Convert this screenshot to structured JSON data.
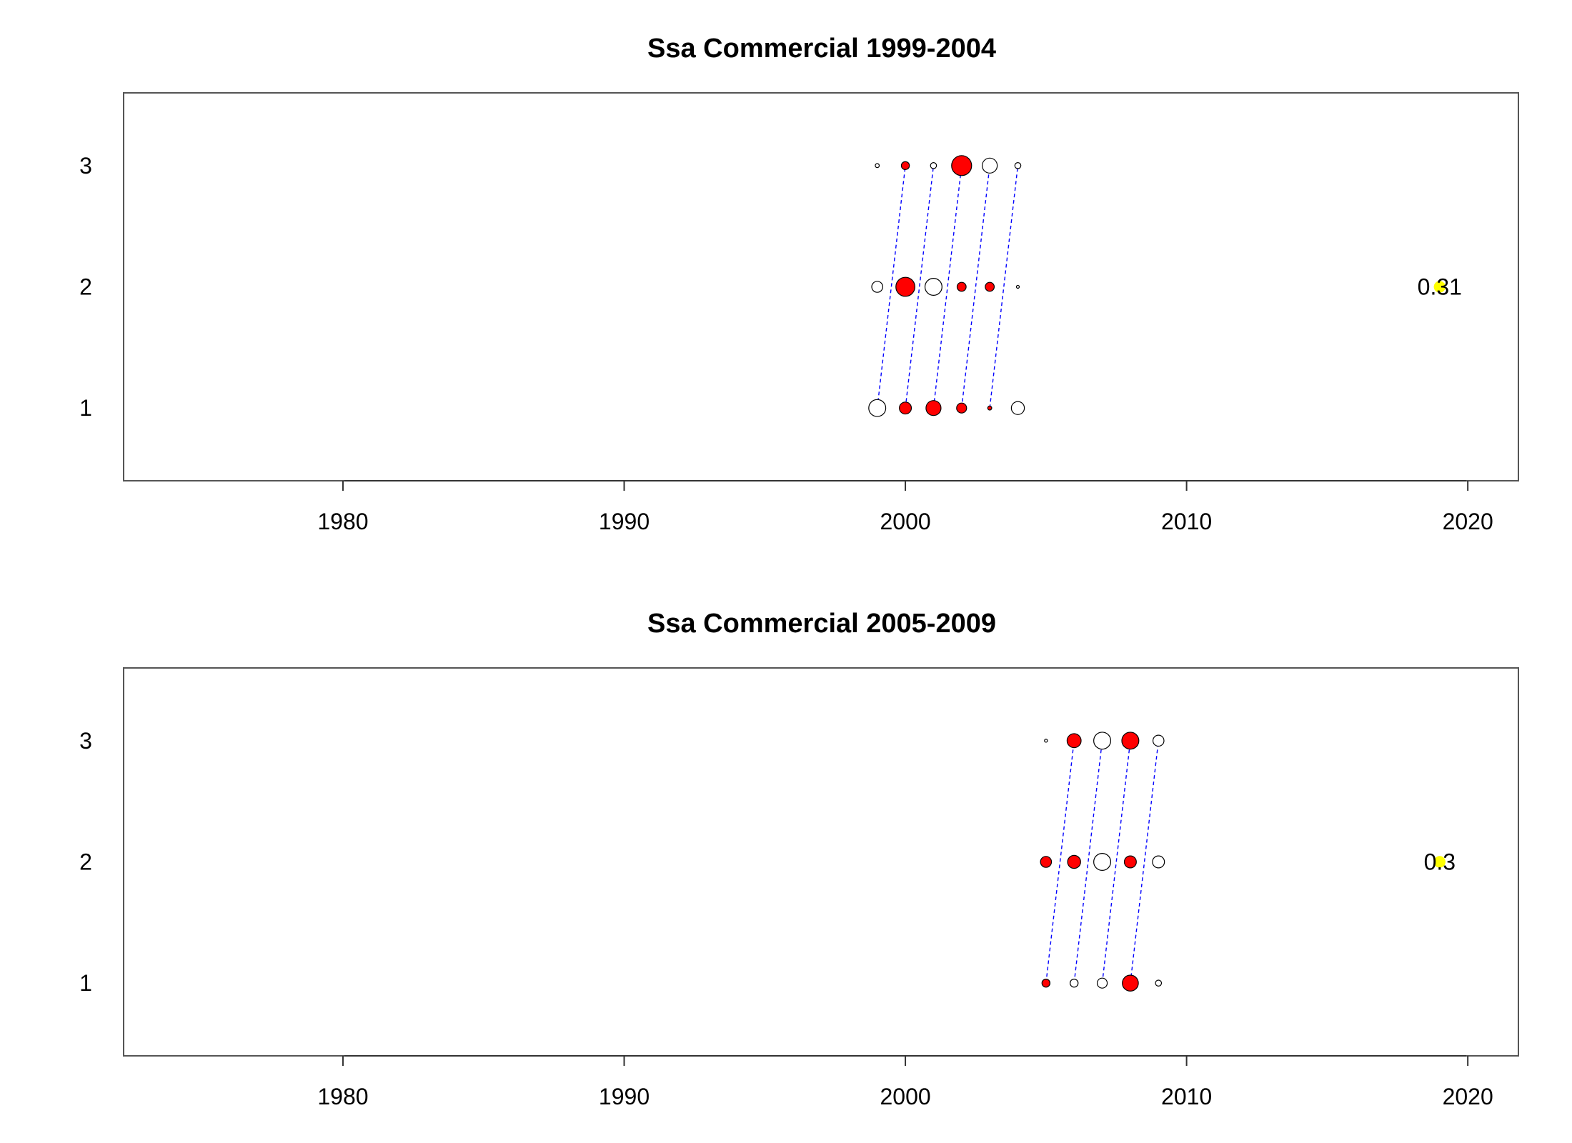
{
  "chart_data": [
    {
      "type": "scatter",
      "title": "Ssa Commercial 1999-2004",
      "xlabel": "",
      "ylabel": "",
      "xlim": [
        1972.2,
        2021.8
      ],
      "ylim": [
        0.4,
        3.6
      ],
      "x_ticks": [
        "1980",
        "1990",
        "2000",
        "2010",
        "2020"
      ],
      "y_ticks": [
        "1",
        "2",
        "3"
      ],
      "grid": false,
      "colors": {
        "positive": "#ff0000",
        "negative": "#ffffff",
        "outline": "#000000",
        "cohort_line": "#0000ff",
        "summary": "#ffff00"
      },
      "points": [
        {
          "x": 1999,
          "y": 3,
          "size": 0.2,
          "sign": "neg"
        },
        {
          "x": 2000,
          "y": 3,
          "size": 0.4,
          "sign": "pos"
        },
        {
          "x": 2001,
          "y": 3,
          "size": 0.3,
          "sign": "neg"
        },
        {
          "x": 2002,
          "y": 3,
          "size": 1.0,
          "sign": "pos"
        },
        {
          "x": 2003,
          "y": 3,
          "size": 0.75,
          "sign": "neg"
        },
        {
          "x": 2004,
          "y": 3,
          "size": 0.3,
          "sign": "neg"
        },
        {
          "x": 1999,
          "y": 2,
          "size": 0.55,
          "sign": "neg"
        },
        {
          "x": 2000,
          "y": 2,
          "size": 0.95,
          "sign": "pos"
        },
        {
          "x": 2001,
          "y": 2,
          "size": 0.85,
          "sign": "neg"
        },
        {
          "x": 2002,
          "y": 2,
          "size": 0.45,
          "sign": "pos"
        },
        {
          "x": 2003,
          "y": 2,
          "size": 0.45,
          "sign": "pos"
        },
        {
          "x": 2004,
          "y": 2,
          "size": 0.1,
          "sign": "neg"
        },
        {
          "x": 1999,
          "y": 1,
          "size": 0.85,
          "sign": "neg"
        },
        {
          "x": 2000,
          "y": 1,
          "size": 0.6,
          "sign": "pos"
        },
        {
          "x": 2001,
          "y": 1,
          "size": 0.75,
          "sign": "pos"
        },
        {
          "x": 2002,
          "y": 1,
          "size": 0.5,
          "sign": "pos"
        },
        {
          "x": 2003,
          "y": 1,
          "size": 0.2,
          "sign": "pos"
        },
        {
          "x": 2004,
          "y": 1,
          "size": 0.65,
          "sign": "neg"
        }
      ],
      "cohort_lines": [
        {
          "x": [
            1999,
            2000
          ],
          "y": [
            1,
            3
          ]
        },
        {
          "x": [
            2000,
            2001
          ],
          "y": [
            1,
            3
          ]
        },
        {
          "x": [
            2001,
            2002
          ],
          "y": [
            1,
            3
          ]
        },
        {
          "x": [
            2002,
            2003
          ],
          "y": [
            1,
            3
          ]
        },
        {
          "x": [
            2003,
            2004
          ],
          "y": [
            1,
            3
          ]
        },
        {
          "x": [
            2004,
            2004
          ],
          "y": [
            2,
            2
          ]
        }
      ],
      "summary": {
        "x": 2019,
        "y": 2,
        "size": 0.55,
        "label": "0.31"
      }
    },
    {
      "type": "scatter",
      "title": "Ssa Commercial 2005-2009",
      "xlabel": "",
      "ylabel": "",
      "xlim": [
        1972.2,
        2021.8
      ],
      "ylim": [
        0.4,
        3.6
      ],
      "x_ticks": [
        "1980",
        "1990",
        "2000",
        "2010",
        "2020"
      ],
      "y_ticks": [
        "1",
        "2",
        "3"
      ],
      "grid": false,
      "colors": {
        "positive": "#ff0000",
        "negative": "#ffffff",
        "outline": "#000000",
        "cohort_line": "#0000ff",
        "summary": "#ffff00"
      },
      "points": [
        {
          "x": 2005,
          "y": 3,
          "size": 0.15,
          "sign": "neg"
        },
        {
          "x": 2006,
          "y": 3,
          "size": 0.7,
          "sign": "pos"
        },
        {
          "x": 2007,
          "y": 3,
          "size": 0.85,
          "sign": "neg"
        },
        {
          "x": 2008,
          "y": 3,
          "size": 0.85,
          "sign": "pos"
        },
        {
          "x": 2009,
          "y": 3,
          "size": 0.55,
          "sign": "neg"
        },
        {
          "x": 2005,
          "y": 2,
          "size": 0.55,
          "sign": "pos"
        },
        {
          "x": 2006,
          "y": 2,
          "size": 0.65,
          "sign": "pos"
        },
        {
          "x": 2007,
          "y": 2,
          "size": 0.85,
          "sign": "neg"
        },
        {
          "x": 2008,
          "y": 2,
          "size": 0.6,
          "sign": "pos"
        },
        {
          "x": 2009,
          "y": 2,
          "size": 0.6,
          "sign": "neg"
        },
        {
          "x": 2005,
          "y": 1,
          "size": 0.4,
          "sign": "pos"
        },
        {
          "x": 2006,
          "y": 1,
          "size": 0.4,
          "sign": "neg"
        },
        {
          "x": 2007,
          "y": 1,
          "size": 0.5,
          "sign": "neg"
        },
        {
          "x": 2008,
          "y": 1,
          "size": 0.8,
          "sign": "pos"
        },
        {
          "x": 2009,
          "y": 1,
          "size": 0.3,
          "sign": "neg"
        }
      ],
      "cohort_lines": [
        {
          "x": [
            2005,
            2006
          ],
          "y": [
            1,
            3
          ]
        },
        {
          "x": [
            2006,
            2007
          ],
          "y": [
            1,
            3
          ]
        },
        {
          "x": [
            2007,
            2008
          ],
          "y": [
            1,
            3
          ]
        },
        {
          "x": [
            2008,
            2009
          ],
          "y": [
            1,
            3
          ]
        }
      ],
      "summary": {
        "x": 2019,
        "y": 2,
        "size": 0.55,
        "label": "0.3"
      }
    }
  ]
}
